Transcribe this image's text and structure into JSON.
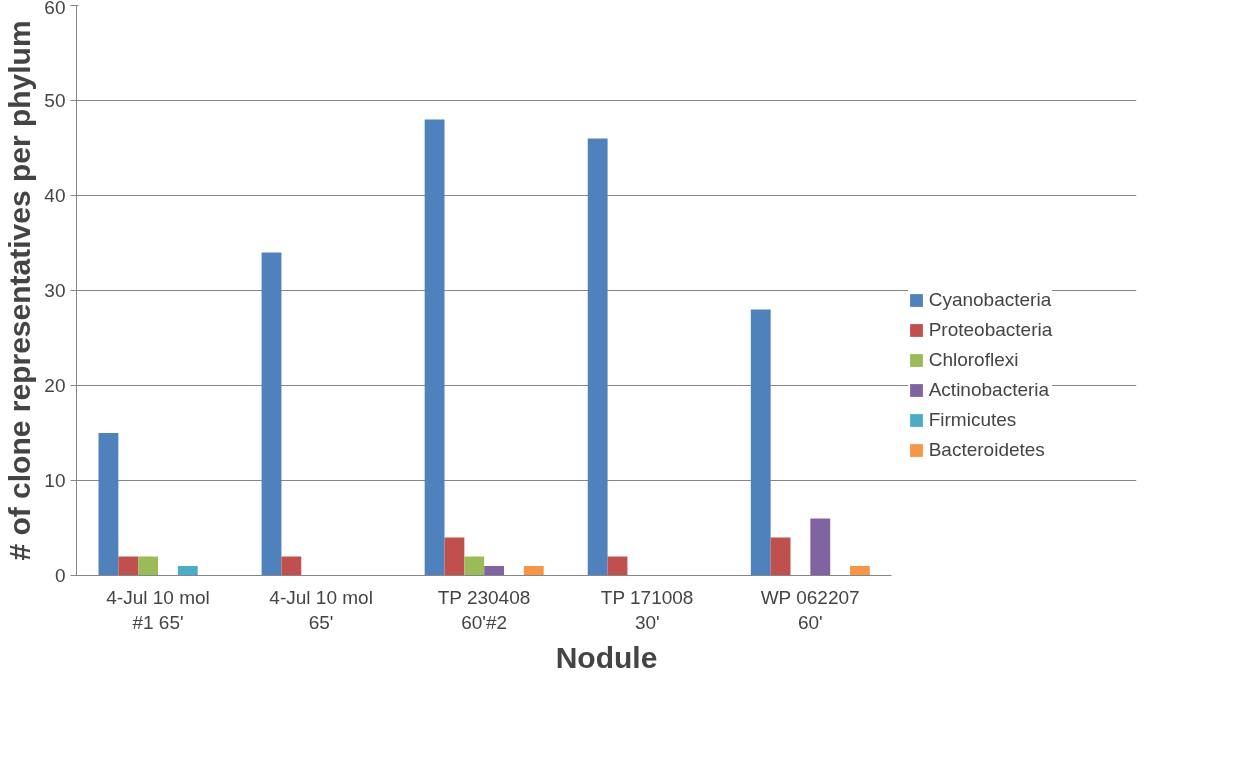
{
  "chart_data": {
    "type": "bar",
    "xlabel": "Nodule",
    "ylabel": "# of clone representatives per phylum",
    "categories": [
      "4-Jul 10 mol\n#1 65'",
      "4-Jul 10 mol\n65'",
      "TP 230408\n60'#2",
      "TP 171008\n30'",
      "WP 062207\n60'"
    ],
    "series": [
      {
        "name": "Cyanobacteria",
        "color": "#4f81bd",
        "values": [
          15,
          34,
          48,
          46,
          28
        ]
      },
      {
        "name": "Proteobacteria",
        "color": "#c0504d",
        "values": [
          2,
          2,
          4,
          2,
          4
        ]
      },
      {
        "name": "Chloroflexi",
        "color": "#9bbb59",
        "values": [
          2,
          0,
          2,
          0,
          0
        ]
      },
      {
        "name": "Actinobacteria",
        "color": "#8064a2",
        "values": [
          0,
          0,
          1,
          0,
          6
        ]
      },
      {
        "name": "Firmicutes",
        "color": "#4bacc6",
        "values": [
          1,
          0,
          0,
          0,
          0
        ]
      },
      {
        "name": "Bacteroidetes",
        "color": "#f79646",
        "values": [
          0,
          0,
          1,
          0,
          1
        ]
      }
    ],
    "ylim": [
      0,
      60
    ],
    "yticks": [
      0,
      10,
      20,
      30,
      40,
      50,
      60
    ],
    "grid": "y",
    "legend": "right"
  }
}
